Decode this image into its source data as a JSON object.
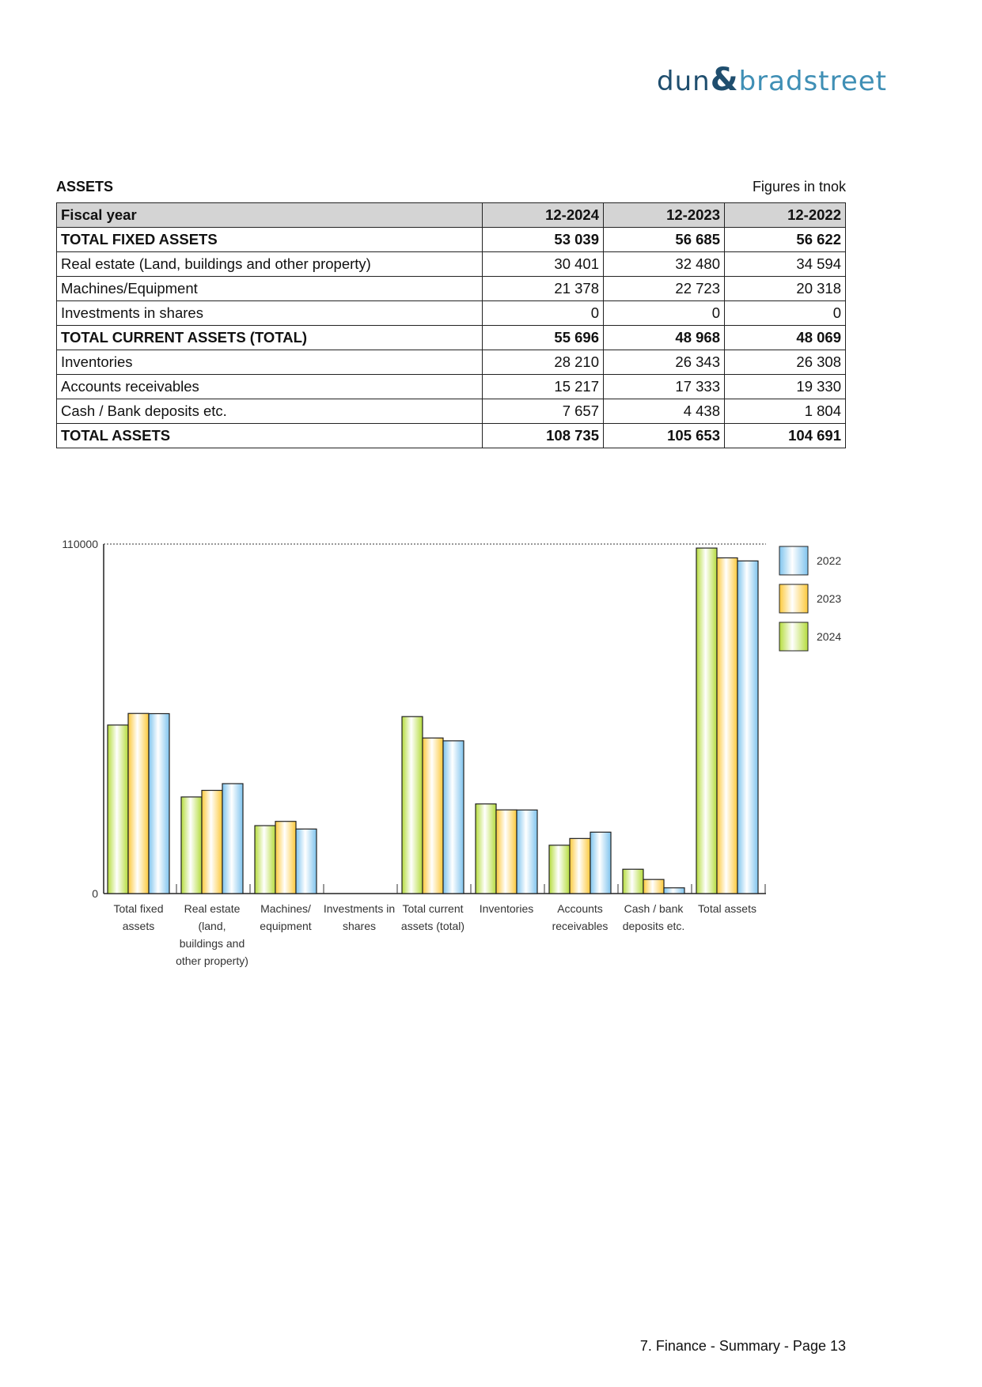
{
  "logo": {
    "part1": "dun",
    "amp": "&",
    "part2": "bradstreet"
  },
  "section": {
    "title": "ASSETS",
    "units": "Figures in tnok"
  },
  "table": {
    "header": [
      "Fiscal year",
      "12-2024",
      "12-2023",
      "12-2022"
    ],
    "rows": [
      {
        "label": "TOTAL FIXED ASSETS",
        "values": [
          "53 039",
          "56 685",
          "56 622"
        ],
        "bold": true
      },
      {
        "label": "Real estate (Land, buildings and other property)",
        "values": [
          "30 401",
          "32 480",
          "34 594"
        ],
        "bold": false
      },
      {
        "label": "Machines/Equipment",
        "values": [
          "21 378",
          "22 723",
          "20 318"
        ],
        "bold": false
      },
      {
        "label": "Investments in shares",
        "values": [
          "0",
          "0",
          "0"
        ],
        "bold": false
      },
      {
        "label": "TOTAL CURRENT ASSETS (TOTAL)",
        "values": [
          "55 696",
          "48 968",
          "48 069"
        ],
        "bold": true
      },
      {
        "label": "Inventories",
        "values": [
          "28 210",
          "26 343",
          "26 308"
        ],
        "bold": false
      },
      {
        "label": "Accounts receivables",
        "values": [
          "15 217",
          "17 333",
          "19 330"
        ],
        "bold": false
      },
      {
        "label": "Cash / Bank deposits etc.",
        "values": [
          "7 657",
          "4 438",
          "1 804"
        ],
        "bold": false
      },
      {
        "label": "TOTAL ASSETS",
        "values": [
          "108 735",
          "105 653",
          "104 691"
        ],
        "bold": true
      }
    ]
  },
  "chart_data": {
    "type": "bar",
    "categories": [
      [
        "Total fixed",
        "assets"
      ],
      [
        "Real estate",
        "(land,",
        "buildings and",
        "other property)"
      ],
      [
        "Machines/",
        "equipment"
      ],
      [
        "Investments in",
        "shares"
      ],
      [
        "Total current",
        "assets (total)"
      ],
      [
        "Inventories"
      ],
      [
        "Accounts",
        "receivables"
      ],
      [
        "Cash / bank",
        "deposits etc."
      ],
      [
        "Total assets"
      ]
    ],
    "series": [
      {
        "name": "2024",
        "color": "#b5dc3c",
        "values": [
          53039,
          30401,
          21378,
          0,
          55696,
          28210,
          15217,
          7657,
          108735
        ]
      },
      {
        "name": "2023",
        "color": "#fcc93a",
        "values": [
          56685,
          32480,
          22723,
          0,
          48968,
          26343,
          17333,
          4438,
          105653
        ]
      },
      {
        "name": "2022",
        "color": "#7fc4ee",
        "values": [
          56622,
          34594,
          20318,
          0,
          48069,
          26308,
          19330,
          1804,
          104691
        ]
      }
    ],
    "ylim": [
      0,
      110000
    ],
    "yticks": [
      "0",
      "110000"
    ],
    "legend_order": [
      "2022",
      "2023",
      "2024"
    ],
    "legend_position": "right"
  },
  "footer": "7. Finance - Summary - Page 13"
}
